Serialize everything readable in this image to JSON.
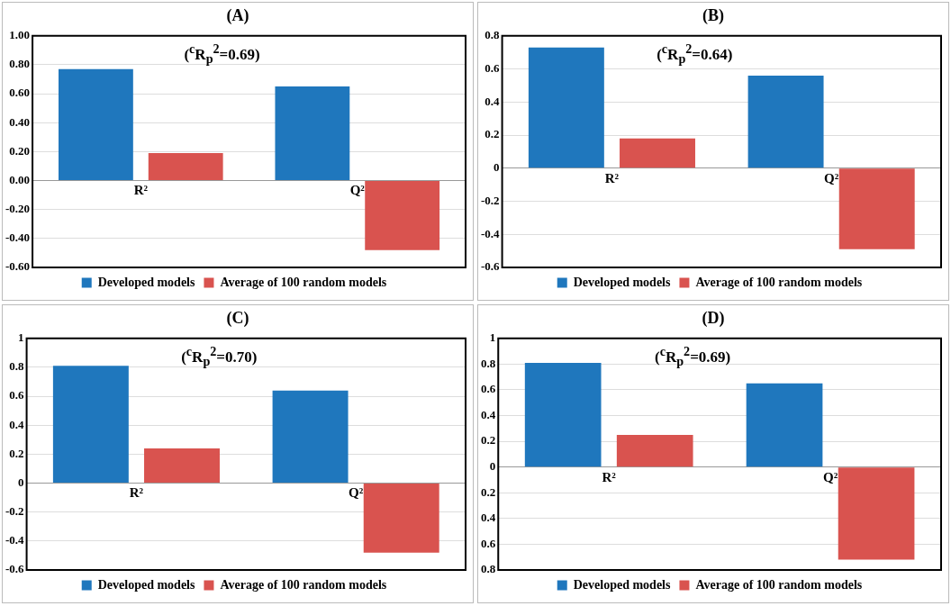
{
  "chart_data": [
    {
      "type": "bar",
      "title": "(A)",
      "categories": [
        "R²",
        "Q²"
      ],
      "series": [
        {
          "name": "Developed models",
          "color": "#1f77bd",
          "values": [
            0.77,
            0.65
          ]
        },
        {
          "name": "Average of 100 random models",
          "color": "#d9534f",
          "values": [
            0.19,
            -0.48
          ]
        }
      ],
      "ylim": [
        -0.6,
        1.0
      ],
      "yticks": [
        {
          "value": -0.6,
          "label": "-0.60"
        },
        {
          "value": -0.4,
          "label": "-0.40"
        },
        {
          "value": -0.2,
          "label": "-0.20"
        },
        {
          "value": 0,
          "label": "0.00"
        },
        {
          "value": 0.2,
          "label": "0.20"
        },
        {
          "value": 0.4,
          "label": "0.40"
        },
        {
          "value": 0.6,
          "label": "0.60"
        },
        {
          "value": 0.8,
          "label": "0.80"
        },
        {
          "value": 1.0,
          "label": "1.00"
        }
      ],
      "annotations": [
        "($^{c}$R$_{p}$$^{2}$=0.69)"
      ],
      "grid": "y",
      "legend": "bottom"
    },
    {
      "type": "bar",
      "title": "(B)",
      "categories": [
        "R²",
        "Q²"
      ],
      "series": [
        {
          "name": "Developed models",
          "color": "#1f77bd",
          "values": [
            0.73,
            0.56
          ]
        },
        {
          "name": "Average of 100 random models",
          "color": "#d9534f",
          "values": [
            0.18,
            -0.49
          ]
        }
      ],
      "ylim": [
        -0.6,
        0.8
      ],
      "yticks": [
        -0.6,
        -0.4,
        -0.2,
        0,
        0.2,
        0.4,
        0.6,
        0.8
      ],
      "annotations": [
        "($^{c}$R$_{p}$$^{2}$=0.64)"
      ],
      "grid": "y",
      "legend": "bottom"
    },
    {
      "type": "bar",
      "title": "(C)",
      "categories": [
        "R²",
        "Q²"
      ],
      "series": [
        {
          "name": "Developed models",
          "color": "#1f77bd",
          "values": [
            0.81,
            0.64
          ]
        },
        {
          "name": "Average of 100 random models",
          "color": "#d9534f",
          "values": [
            0.24,
            -0.48
          ]
        }
      ],
      "ylim": [
        -0.6,
        1
      ],
      "yticks": [
        -0.6,
        -0.4,
        -0.2,
        0,
        0.2,
        0.4,
        0.6,
        0.8,
        1
      ],
      "annotations": [
        "($^{c}$R$_{p}$$^{2}$=0.70)"
      ],
      "grid": "y",
      "legend": "bottom"
    },
    {
      "type": "bar",
      "title": "(D)",
      "categories": [
        "R²",
        "Q²"
      ],
      "series": [
        {
          "name": "Developed models",
          "color": "#1f77bd",
          "values": [
            0.81,
            0.65
          ]
        },
        {
          "name": "Average of 100 random models",
          "color": "#d9534f",
          "values": [
            0.25,
            -0.72
          ]
        }
      ],
      "ylim": [
        -0.8,
        1
      ],
      "yticks": [
        {
          "value": -0.8,
          "label": "0.8"
        },
        {
          "value": -0.6,
          "label": "0.6"
        },
        {
          "value": -0.4,
          "label": "0.4"
        },
        {
          "value": -0.2,
          "label": "0.2"
        },
        0,
        0.2,
        0.4,
        0.6,
        0.8,
        1
      ],
      "annotations": [
        "($^{c}$R$_{p}$$^{2}$=0.69)"
      ],
      "grid": "y",
      "legend": "bottom"
    }
  ]
}
